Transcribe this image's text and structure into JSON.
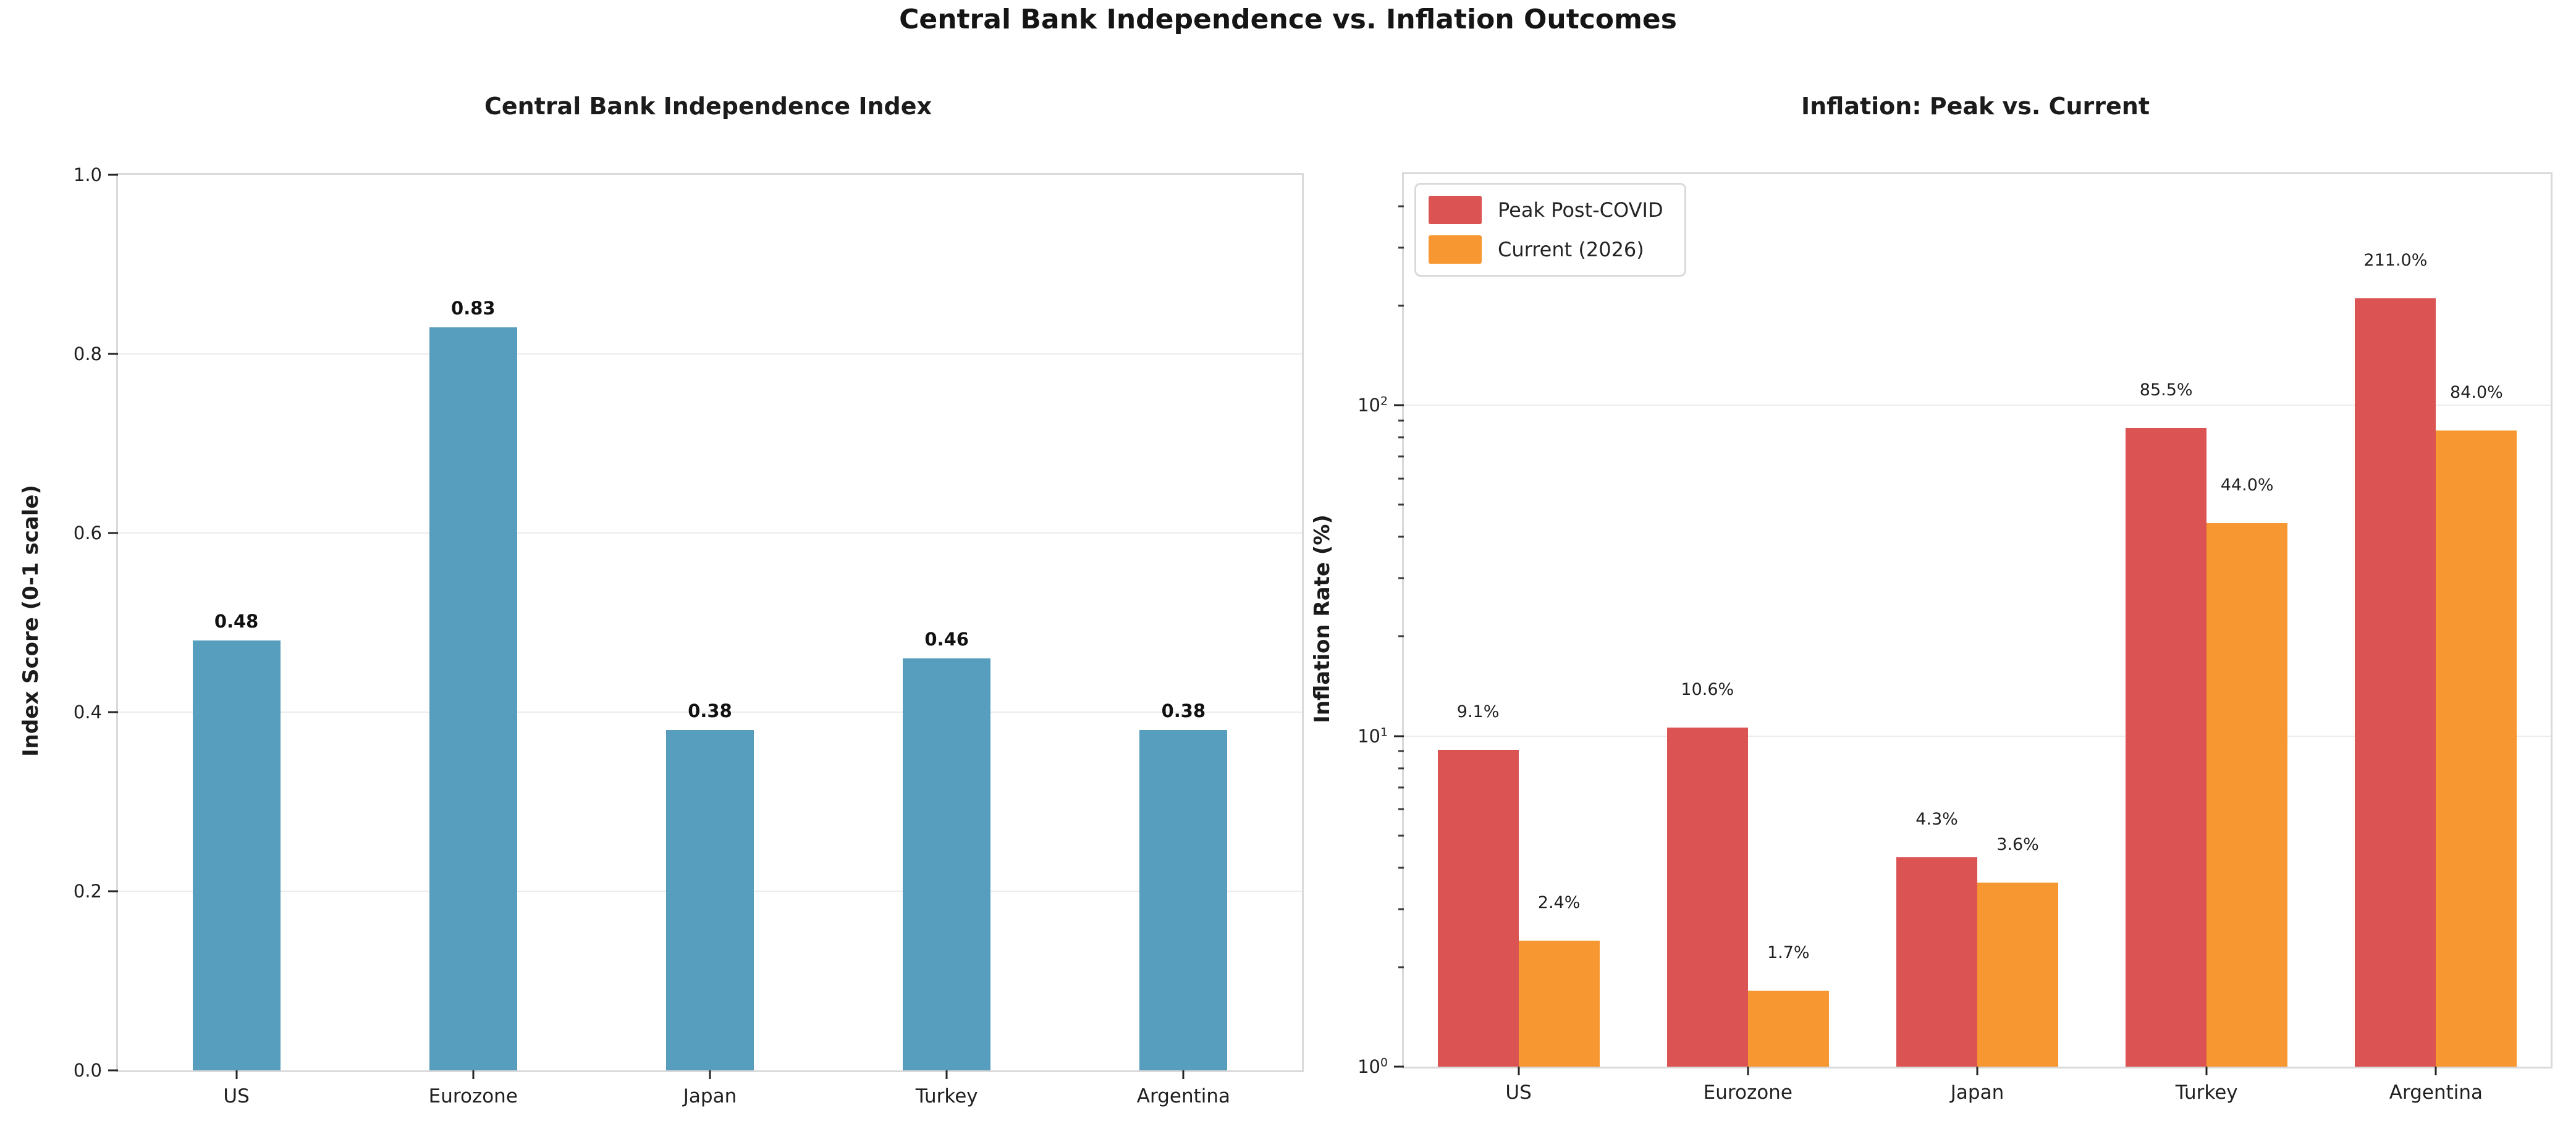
{
  "title": "Central Bank Independence vs. Inflation Outcomes",
  "colors": {
    "bar_blue": "#579DBE",
    "bar_red": "#DB5353",
    "bar_orange": "#F79732",
    "grid": "#ECECEC",
    "spine": "#D9D9D9",
    "background": "#FFFFFF"
  },
  "chart_data": [
    {
      "type": "bar",
      "title": "Central Bank Independence Index",
      "ylabel": "Index Score (0-1 scale)",
      "categories": [
        "US",
        "Eurozone",
        "Japan",
        "Turkey",
        "Argentina"
      ],
      "values": [
        0.48,
        0.83,
        0.38,
        0.46,
        0.38
      ],
      "bar_labels": [
        "0.48",
        "0.83",
        "0.38",
        "0.46",
        "0.38"
      ],
      "ylim": [
        0,
        1.0
      ],
      "yscale": "linear",
      "yticks": [
        0.0,
        0.2,
        0.4,
        0.6,
        0.8,
        1.0
      ],
      "ytick_labels": [
        "0.0",
        "0.2",
        "0.4",
        "0.6",
        "0.8",
        "1.0"
      ],
      "grid": true,
      "legend": null
    },
    {
      "type": "bar",
      "title": "Inflation: Peak vs. Current",
      "ylabel": "Inflation Rate (%)",
      "categories": [
        "US",
        "Eurozone",
        "Japan",
        "Turkey",
        "Argentina"
      ],
      "series": [
        {
          "name": "Peak Post-COVID",
          "color": "#DB5353",
          "values": [
            9.1,
            10.6,
            4.3,
            85.5,
            211.0
          ],
          "bar_labels": [
            "9.1%",
            "10.6%",
            "4.3%",
            "85.5%",
            "211.0%"
          ]
        },
        {
          "name": "Current (2026)",
          "color": "#F79732",
          "values": [
            2.4,
            1.7,
            3.6,
            44.0,
            84.0
          ],
          "bar_labels": [
            "2.4%",
            "1.7%",
            "3.6%",
            "44.0%",
            "84.0%"
          ]
        }
      ],
      "ylim": [
        1,
        500
      ],
      "yscale": "log",
      "ytick_exponents": [
        0,
        1,
        2
      ],
      "grid": true,
      "legend": {
        "position": "upper left",
        "entries": [
          "Peak Post-COVID",
          "Current (2026)"
        ]
      }
    }
  ]
}
